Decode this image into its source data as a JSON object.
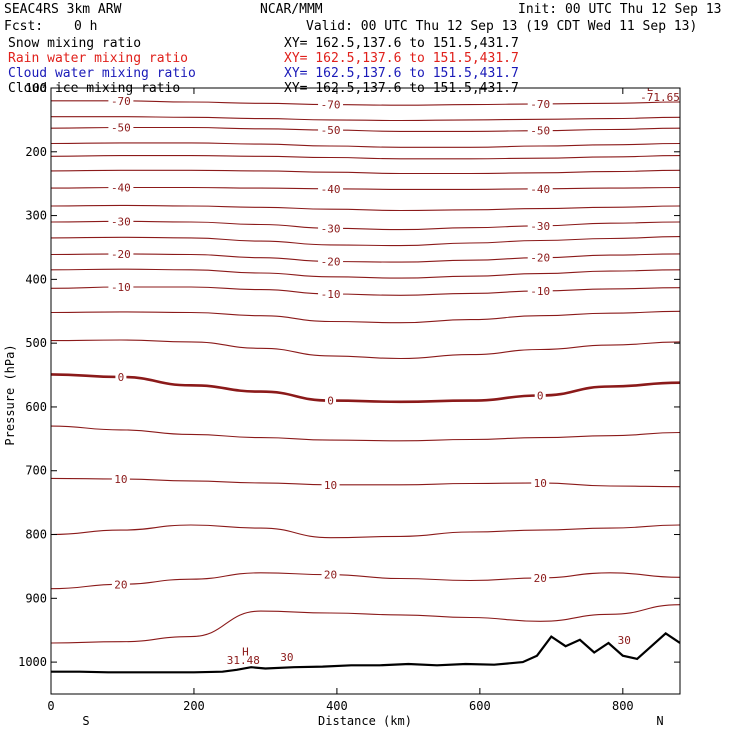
{
  "header": {
    "model": "SEAC4RS  3km ARW",
    "org": "NCAR/MMM",
    "init": "Init: 00 UTC Thu 12 Sep 13",
    "fcst_label": "Fcst:",
    "fcst_value": "0 h",
    "valid": "Valid: 00 UTC Thu 12 Sep 13 (19 CDT Wed 11 Sep 13)"
  },
  "fields": [
    {
      "label": "Snow mixing ratio",
      "xy": "XY= 162.5,137.6 to 151.5,431.7",
      "color": "#000000"
    },
    {
      "label": "Rain water mixing ratio",
      "xy": "XY= 162.5,137.6 to 151.5,431.7",
      "color": "#e0201b"
    },
    {
      "label": "Cloud water mixing ratio",
      "xy": "XY= 162.5,137.6 to 151.5,431.7",
      "color": "#1a1ab8"
    },
    {
      "label": "Cloud ice mixing ratio",
      "xy": "XY= 162.5,137.6 to 151.5,431.7",
      "color": "#000000"
    }
  ],
  "chart_data": {
    "type": "line",
    "xlabel": "Distance (km)",
    "ylabel": "Pressure (hPa)",
    "xlim": [
      0,
      880
    ],
    "ylim": [
      1050,
      100
    ],
    "xticks": [
      0,
      200,
      400,
      600,
      800
    ],
    "yticks": [
      100,
      200,
      300,
      400,
      500,
      600,
      700,
      800,
      900,
      1000
    ],
    "left_end_label": "S",
    "right_end_label": "N",
    "contour_color": "#8b1a1a",
    "terrain_color": "#000000",
    "isotherms": [
      {
        "p": [
          120,
          120,
          122,
          124,
          126,
          127,
          126,
          125,
          124,
          122
        ],
        "label": "-70",
        "bold": false
      },
      {
        "p": [
          145,
          145,
          146,
          148,
          150,
          151,
          150,
          149,
          148,
          146
        ],
        "bold": false
      },
      {
        "p": [
          163,
          162,
          162,
          164,
          166,
          168,
          168,
          167,
          165,
          163
        ],
        "label": "-50",
        "bold": false
      },
      {
        "p": [
          187,
          186,
          186,
          188,
          191,
          193,
          193,
          191,
          189,
          187
        ],
        "bold": false
      },
      {
        "p": [
          207,
          206,
          206,
          207,
          209,
          211,
          211,
          210,
          208,
          206
        ],
        "bold": false
      },
      {
        "p": [
          230,
          229,
          229,
          230,
          232,
          234,
          234,
          233,
          231,
          229
        ],
        "bold": false
      },
      {
        "p": [
          257,
          256,
          256,
          257,
          258,
          259,
          259,
          258,
          257,
          256
        ],
        "label": "-40",
        "bold": false
      },
      {
        "p": [
          285,
          284,
          285,
          287,
          290,
          292,
          291,
          289,
          287,
          285
        ],
        "bold": false
      },
      {
        "p": [
          310,
          309,
          310,
          314,
          320,
          322,
          319,
          316,
          312,
          310
        ],
        "label": "-30",
        "bold": false
      },
      {
        "p": [
          335,
          334,
          335,
          340,
          346,
          347,
          343,
          339,
          336,
          333
        ],
        "bold": false
      },
      {
        "p": [
          361,
          360,
          361,
          366,
          372,
          373,
          370,
          366,
          362,
          360
        ],
        "label": "-20",
        "bold": false
      },
      {
        "p": [
          385,
          384,
          385,
          390,
          396,
          398,
          395,
          391,
          387,
          385
        ],
        "bold": false
      },
      {
        "p": [
          414,
          412,
          412,
          416,
          423,
          425,
          422,
          418,
          415,
          413
        ],
        "label": "-10",
        "bold": false
      },
      {
        "p": [
          452,
          451,
          452,
          457,
          466,
          468,
          463,
          457,
          453,
          450
        ],
        "bold": false
      },
      {
        "p": [
          496,
          495,
          498,
          508,
          520,
          524,
          518,
          510,
          503,
          498
        ],
        "bold": false
      },
      {
        "p": [
          549,
          553,
          566,
          576,
          590,
          592,
          590,
          582,
          568,
          562
        ],
        "label": "0",
        "bold": true
      },
      {
        "p": [
          630,
          636,
          643,
          648,
          652,
          653,
          651,
          648,
          645,
          640
        ],
        "bold": false
      },
      {
        "p": [
          712,
          713,
          716,
          719,
          722,
          722,
          720,
          719,
          724,
          725
        ],
        "label": "10",
        "bold": false
      },
      {
        "p": [
          800,
          793,
          785,
          790,
          805,
          803,
          796,
          793,
          790,
          785
        ],
        "bold": false
      },
      {
        "p": [
          885,
          878,
          870,
          860,
          863,
          869,
          872,
          868,
          860,
          867
        ],
        "label": "20",
        "bold": false
      },
      {
        "p": [
          970,
          968,
          960,
          920,
          923,
          926,
          930,
          936,
          925,
          910
        ],
        "bold": false
      }
    ],
    "terrain": {
      "x": [
        0,
        40,
        80,
        120,
        160,
        200,
        240,
        260,
        280,
        300,
        340,
        380,
        420,
        460,
        500,
        540,
        580,
        620,
        660,
        680,
        700,
        720,
        740,
        760,
        780,
        800,
        820,
        840,
        860,
        880
      ],
      "p": [
        1015,
        1015,
        1016,
        1016,
        1016,
        1016,
        1015,
        1012,
        1008,
        1010,
        1008,
        1007,
        1005,
        1005,
        1003,
        1005,
        1003,
        1004,
        1000,
        990,
        960,
        975,
        965,
        985,
        970,
        990,
        995,
        975,
        955,
        970
      ]
    },
    "annotations": [
      {
        "text": "L",
        "x": 838,
        "p": 105
      },
      {
        "text": "-71.65",
        "x": 852,
        "p": 120
      },
      {
        "text": "H",
        "x": 272,
        "p": 990
      },
      {
        "text": "31.48",
        "x": 269,
        "p": 1003
      },
      {
        "text": "30",
        "x": 330,
        "p": 998
      },
      {
        "text": "30",
        "x": 802,
        "p": 972
      }
    ]
  }
}
